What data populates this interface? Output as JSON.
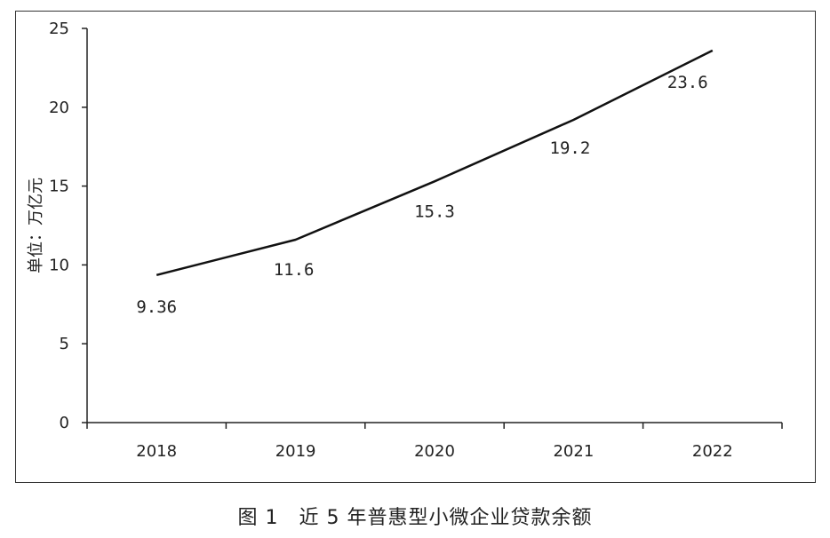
{
  "chart_data": {
    "type": "line",
    "categories": [
      "2018",
      "2019",
      "2020",
      "2021",
      "2022"
    ],
    "values": [
      9.36,
      11.6,
      15.3,
      19.2,
      23.6
    ],
    "data_labels": [
      "9.36",
      "11.6",
      "15.3",
      "19.2",
      "23.6"
    ],
    "ylabel": "单位：万亿元",
    "xlabel": "",
    "ylim": [
      0,
      25
    ],
    "yticks": [
      "0",
      "5",
      "10",
      "15",
      "20",
      "25"
    ],
    "grid": false,
    "line_color": "#111111"
  },
  "caption": "图 1　近 5 年普惠型小微企业贷款余额"
}
